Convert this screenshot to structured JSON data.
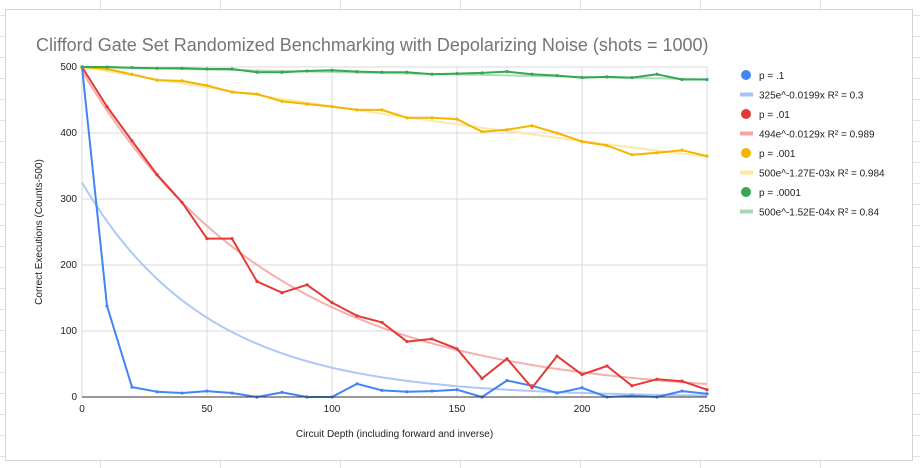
{
  "chart_data": {
    "type": "line",
    "title": "Clifford Gate Set Randomized Benchmarking with Depolarizing Noise (shots = 1000)",
    "xlabel": "Circuit Depth (including forward and inverse)",
    "ylabel": "Correct Executions (Counts-500)",
    "xlim": [
      0,
      250
    ],
    "ylim": [
      0,
      500
    ],
    "xticks": [
      0,
      50,
      100,
      150,
      200,
      250
    ],
    "yticks": [
      0,
      100,
      200,
      300,
      400,
      500
    ],
    "grid": true,
    "legend_position": "right",
    "x": [
      0,
      10,
      20,
      30,
      40,
      50,
      60,
      70,
      80,
      90,
      100,
      110,
      120,
      130,
      140,
      150,
      160,
      170,
      180,
      190,
      200,
      210,
      220,
      230,
      240,
      250
    ],
    "series": [
      {
        "name": "p = .1",
        "color": "#4285f4",
        "values": [
          500,
          138,
          15,
          8,
          6,
          9,
          6,
          0,
          7,
          0,
          0,
          20,
          10,
          8,
          9,
          11,
          0,
          25,
          17,
          6,
          14,
          0,
          2,
          0,
          9,
          5
        ]
      },
      {
        "name": "p = .01",
        "color": "#e53935",
        "values": [
          500,
          440,
          388,
          337,
          295,
          240,
          240,
          175,
          158,
          170,
          143,
          123,
          113,
          84,
          88,
          73,
          28,
          58,
          14,
          62,
          34,
          47,
          17,
          27,
          24,
          11
        ]
      },
      {
        "name": "p = .001",
        "color": "#f4b400",
        "values": [
          500,
          497,
          489,
          480,
          479,
          472,
          462,
          459,
          448,
          444,
          440,
          435,
          435,
          423,
          423,
          421,
          402,
          405,
          411,
          400,
          387,
          381,
          367,
          370,
          374,
          365
        ]
      },
      {
        "name": "p = .0001",
        "color": "#34a853",
        "values": [
          500,
          500,
          499,
          498,
          498,
          497,
          497,
          492,
          492,
          494,
          495,
          493,
          492,
          492,
          489,
          490,
          491,
          493,
          489,
          487,
          484,
          485,
          484,
          489,
          481,
          481
        ]
      }
    ],
    "trendlines": [
      {
        "label": "325e^-0.0199x R² = 0.3",
        "color": "#a4c2f4",
        "a": 325,
        "b": -0.0199
      },
      {
        "label": "494e^-0.0129x R² = 0.989",
        "color": "#f4a6a6",
        "a": 494,
        "b": -0.0129
      },
      {
        "label": "500e^-1.27E-03x R² = 0.984",
        "color": "#fce8a0",
        "a": 500,
        "b": -0.00127
      },
      {
        "label": "500e^-1.52E-04x R² = 0.84",
        "color": "#a8d8b0",
        "a": 500,
        "b": -0.000152
      }
    ]
  }
}
